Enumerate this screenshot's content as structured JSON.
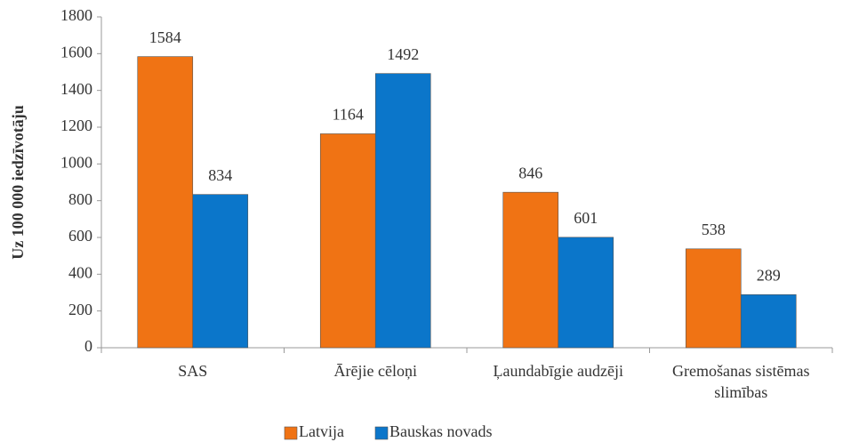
{
  "chart_data": {
    "type": "bar",
    "y_label": "Uz 100 000 iedzīvotāju",
    "categories": [
      "SAS",
      "Ārējie cēloņi",
      "Ļaundabīgie audzēji",
      "Gremošanas sistēmas slimības"
    ],
    "series": [
      {
        "name": "Latvija",
        "color": "#f07314",
        "values": [
          1584,
          1164,
          846,
          538
        ]
      },
      {
        "name": "Bauskas novads",
        "color": "#0b76ca",
        "values": [
          834,
          1492,
          601,
          289
        ]
      }
    ],
    "ylim": [
      0,
      1800
    ],
    "yticks": [
      0,
      200,
      400,
      600,
      800,
      1000,
      1200,
      1400,
      1600,
      1800
    ],
    "legend": "bottom"
  }
}
